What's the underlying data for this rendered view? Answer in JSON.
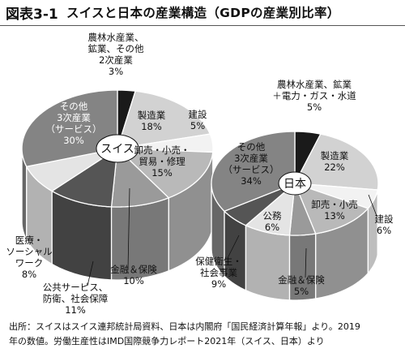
{
  "figure": {
    "label": "図表3-1",
    "title": "スイスと日本の産業構造（GDPの産業別比率）"
  },
  "chart_data": [
    {
      "type": "pie",
      "center_label": "スイス",
      "slices": [
        {
          "name": "農林水産業、鉱業、その他2次産業",
          "lines": [
            "農林水産業、",
            "鉱業、その他",
            "2次産業"
          ],
          "pct_label": "3%",
          "value": 3,
          "color": "#1a1a1a"
        },
        {
          "name": "製造業",
          "lines": [
            "製造業"
          ],
          "pct_label": "18%",
          "value": 18,
          "color": "#d2d2d2"
        },
        {
          "name": "建設",
          "lines": [
            "建設"
          ],
          "pct_label": "5%",
          "value": 5,
          "color": "#f2f2f2"
        },
        {
          "name": "卸売・小売・貿易・修理",
          "lines": [
            "卸売・小売・",
            "貿易・修理"
          ],
          "pct_label": "15%",
          "value": 15,
          "color": "#b9b9b9"
        },
        {
          "name": "金融＆保険",
          "lines": [
            "金融＆保険"
          ],
          "pct_label": "10%",
          "value": 10,
          "color": "#9a9a9a"
        },
        {
          "name": "公共サービス、防衛、社会保障",
          "lines": [
            "公共サービス、",
            "防衛、社会保障"
          ],
          "pct_label": "11%",
          "value": 11,
          "color": "#555555"
        },
        {
          "name": "医療・ソーシャルワーク",
          "lines": [
            "医療・",
            "ソーシャル",
            "ワーク"
          ],
          "pct_label": "8%",
          "value": 8,
          "color": "#e4e4e4"
        },
        {
          "name": "その他3次産業（サービス）",
          "lines": [
            "その他",
            "3次産業",
            "（サービス）"
          ],
          "pct_label": "30%",
          "value": 30,
          "color": "#848484"
        }
      ]
    },
    {
      "type": "pie",
      "center_label": "日本",
      "slices": [
        {
          "name": "農林水産業、鉱業＋電力・ガス・水道",
          "lines": [
            "農林水産業、鉱業",
            "＋電力・ガス・水道"
          ],
          "pct_label": "5%",
          "value": 5,
          "color": "#1a1a1a"
        },
        {
          "name": "製造業",
          "lines": [
            "製造業"
          ],
          "pct_label": "22%",
          "value": 22,
          "color": "#d2d2d2"
        },
        {
          "name": "建設",
          "lines": [
            "建設"
          ],
          "pct_label": "6%",
          "value": 6,
          "color": "#f2f2f2"
        },
        {
          "name": "卸売・小売",
          "lines": [
            "卸売・小売"
          ],
          "pct_label": "13%",
          "value": 13,
          "color": "#b9b9b9"
        },
        {
          "name": "金融＆保険",
          "lines": [
            "金融＆保険"
          ],
          "pct_label": "5%",
          "value": 5,
          "color": "#9a9a9a"
        },
        {
          "name": "保健衛生・社会事業",
          "lines": [
            "保健衛生・",
            "社会事業"
          ],
          "pct_label": "9%",
          "value": 9,
          "color": "#e4e4e4"
        },
        {
          "name": "公務",
          "lines": [
            "公務"
          ],
          "pct_label": "6%",
          "value": 6,
          "color": "#555555"
        },
        {
          "name": "その他3次産業（サービス）",
          "lines": [
            "その他",
            "3次産業",
            "（サービス）"
          ],
          "pct_label": "34%",
          "value": 34,
          "color": "#848484"
        }
      ]
    }
  ],
  "source_note": {
    "line1": "出所：スイスはスイス連邦統計局資料、日本は内閣府「国民経済計算年報」より。2019",
    "line2": "年の数値。労働生産性はIMD国際競争力レポート2021年（スイス、日本）より"
  }
}
